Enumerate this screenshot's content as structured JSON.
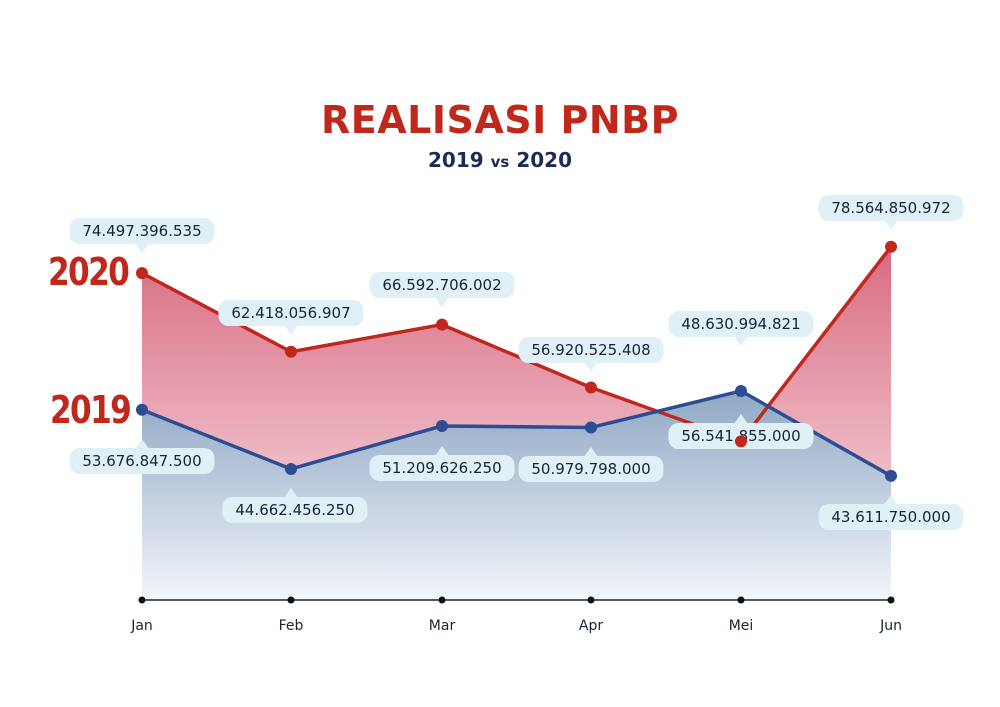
{
  "title": "REALISASI PNBP",
  "subtitle": {
    "a": "2019",
    "vs": "vs",
    "b": "2020"
  },
  "colors": {
    "y2020": "#c0281c",
    "y2019": "#2c4d94",
    "label_bg": "#dff1f7",
    "title": "#c0281c",
    "subtitle": "#1f2a55",
    "text": "#1b2236"
  },
  "chart_data": {
    "type": "area",
    "title": "REALISASI PNBP",
    "subtitle": "2019 vs 2020",
    "categories": [
      "Jan",
      "Feb",
      "Mar",
      "Apr",
      "Mei",
      "Jun"
    ],
    "series": [
      {
        "name": "2020",
        "values": [
          74497396535,
          62418056907,
          66592706002,
          56920525408,
          48630994821,
          78564850972
        ],
        "labels": [
          "74.497.396.535",
          "62.418.056.907",
          "66.592.706.002",
          "56.920.525.408",
          "48.630.994.821",
          "78.564.850.972"
        ]
      },
      {
        "name": "2019",
        "values": [
          53676847500,
          44662456250,
          51209626250,
          50979798000,
          56541855000,
          43611750000
        ],
        "labels": [
          "53.676.847.500",
          "44.662.456.250",
          "51.209.626.250",
          "50.979.798.000",
          "56.541.855.000",
          "43.611.750.000"
        ]
      }
    ],
    "grid": false,
    "legend": "left"
  }
}
